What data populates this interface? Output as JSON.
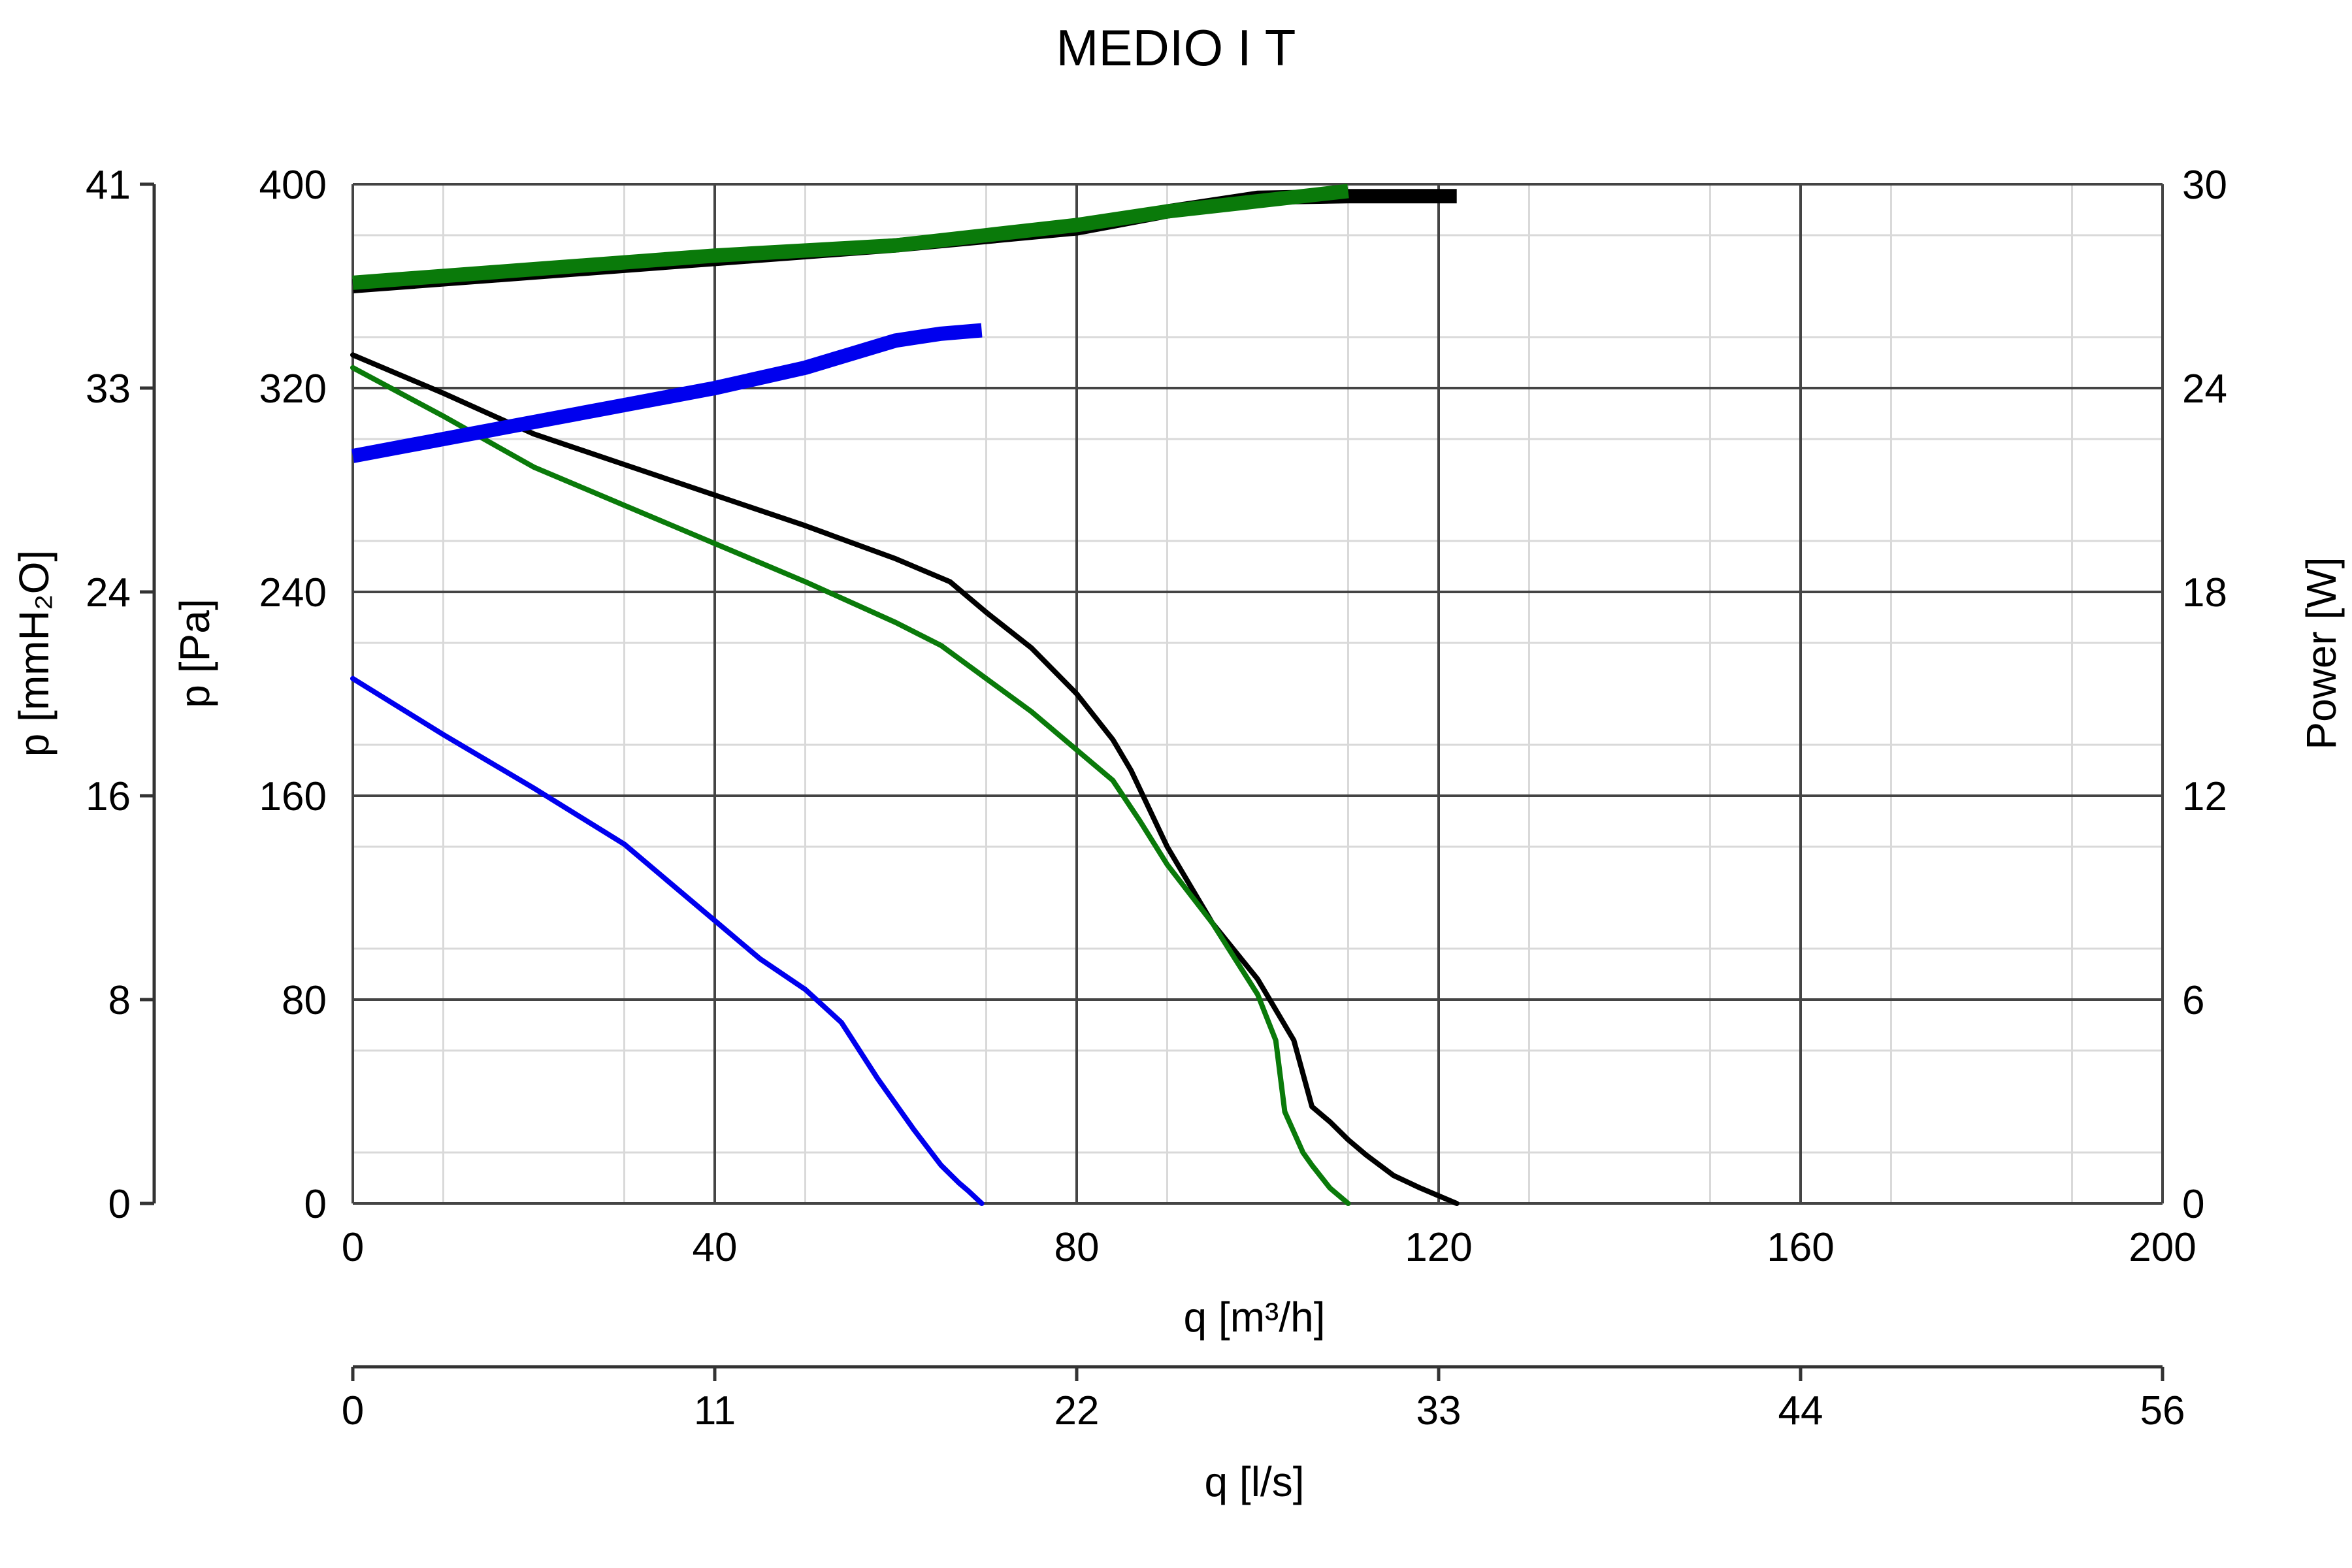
{
  "chart_data": {
    "type": "line",
    "title": "MEDIO I T",
    "xlabel": "q [m³/h]",
    "xlabel2": "q [l/s]",
    "ylabel_left_outer": "p [mmH₂O]",
    "ylabel_left": "p [Pa]",
    "ylabel_right": "Power [W]",
    "xlim": [
      0,
      200
    ],
    "ylim": [
      0,
      400
    ],
    "y2lim": [
      0,
      30
    ],
    "grid": true,
    "legend": "none",
    "x_ticks": [
      "0",
      "40",
      "80",
      "120",
      "160",
      "200"
    ],
    "y_ticks": [
      "0",
      "80",
      "160",
      "240",
      "320",
      "400"
    ],
    "y_outer_ticks": [
      "0",
      "8",
      "16",
      "24",
      "33",
      "41"
    ],
    "y_right_ticks": [
      "0",
      "6",
      "12",
      "18",
      "24",
      "30"
    ],
    "x2_ticks": [
      "0",
      "11",
      "22",
      "33",
      "44",
      "56"
    ],
    "colors": {
      "black": "#000000",
      "green": "#0a7a0a",
      "blue": "#0000ee",
      "grid_major": "#444444",
      "grid_minor": "#d9d9d9"
    },
    "series": [
      {
        "color": "#000000",
        "axis": "pressure",
        "values_unit": "Pa",
        "x": [
          0,
          10,
          20,
          30,
          40,
          50,
          60,
          66,
          70,
          75,
          80,
          84,
          86,
          90,
          95,
          100,
          104,
          106,
          108,
          110,
          112,
          115,
          118,
          120,
          122
        ],
        "y": [
          333,
          318,
          302,
          290,
          278,
          266,
          253,
          244,
          232,
          218,
          200,
          182,
          170,
          140,
          110,
          88,
          64,
          38,
          32,
          25,
          19,
          11,
          6,
          3,
          0
        ]
      },
      {
        "color": "#0a7a0a",
        "axis": "pressure",
        "values_unit": "Pa",
        "x": [
          0,
          10,
          20,
          30,
          40,
          50,
          60,
          65,
          70,
          75,
          80,
          84,
          87,
          90,
          95,
          100,
          102,
          103,
          104,
          105,
          106,
          108,
          110
        ],
        "y": [
          328,
          309,
          289,
          274,
          259,
          244,
          228,
          219,
          206,
          193,
          178,
          166,
          150,
          133,
          110,
          82,
          64,
          36,
          28,
          20,
          15,
          6,
          0
        ]
      },
      {
        "color": "#0000ee",
        "axis": "pressure",
        "values_unit": "Pa",
        "x": [
          0,
          10,
          20,
          30,
          40,
          45,
          50,
          54,
          58,
          60,
          62,
          65,
          67,
          68,
          69.5
        ],
        "y": [
          206,
          184,
          163,
          141,
          111,
          96,
          84,
          71,
          49,
          39,
          29,
          15,
          8,
          5,
          0
        ]
      },
      {
        "color": "#000000",
        "axis": "power",
        "values_unit": "W",
        "thick": true,
        "x": [
          0,
          20,
          40,
          60,
          80,
          90,
          100,
          110,
          122
        ],
        "y": [
          27.0,
          27.4,
          27.8,
          28.2,
          28.7,
          29.2,
          29.6,
          29.65,
          29.65
        ]
      },
      {
        "color": "#0a7a0a",
        "axis": "power",
        "values_unit": "W",
        "thick": true,
        "x": [
          0,
          20,
          40,
          60,
          70,
          80,
          90,
          100,
          110
        ],
        "y": [
          27.1,
          27.5,
          27.9,
          28.2,
          28.5,
          28.8,
          29.2,
          29.5,
          29.8
        ]
      },
      {
        "color": "#0000ee",
        "axis": "power",
        "values_unit": "W",
        "thick": true,
        "x": [
          0,
          10,
          20,
          30,
          40,
          50,
          55,
          60,
          65,
          69.5
        ],
        "y": [
          22.0,
          22.5,
          23.0,
          23.5,
          24.0,
          24.6,
          25.0,
          25.4,
          25.6,
          25.7
        ]
      }
    ]
  }
}
